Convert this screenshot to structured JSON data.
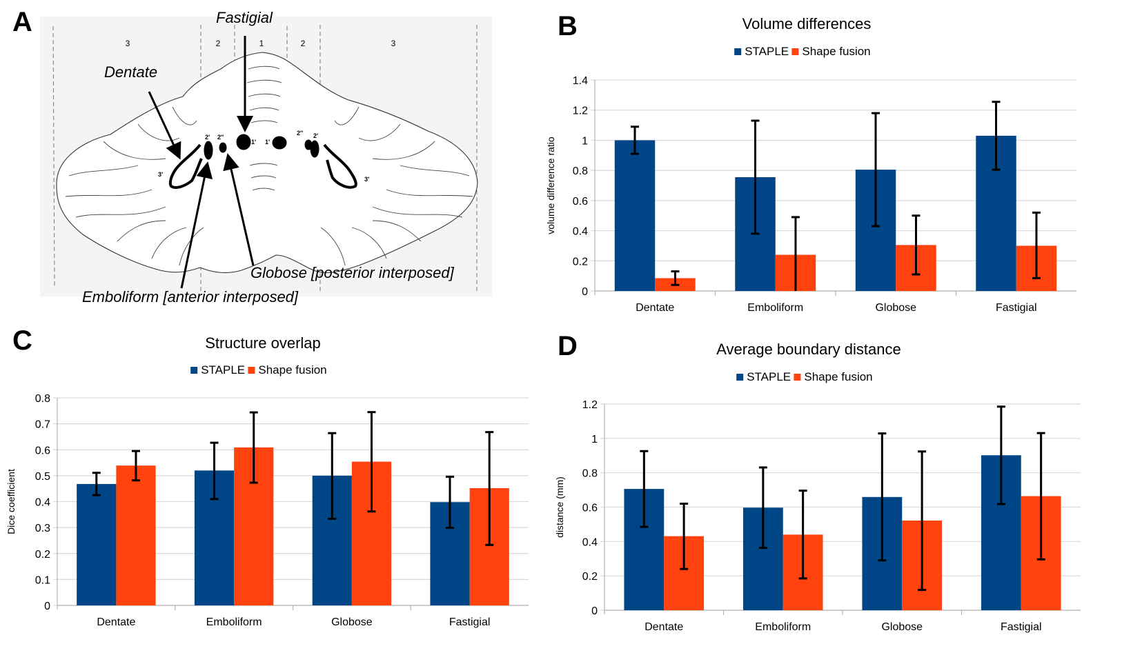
{
  "figure": {
    "panel_letters": [
      "A",
      "B",
      "C",
      "D"
    ]
  },
  "panel_a": {
    "zone_labels": [
      "3",
      "2",
      "1",
      "2",
      "3"
    ],
    "nucleus_marks": [
      "2'",
      "2''",
      "1'",
      "1'",
      "2''",
      "2'",
      "3'",
      "3'"
    ],
    "annotations": {
      "fastigial": "Fastigial",
      "dentate": "Dentate",
      "globose": "Globose [posterior interposed]",
      "emboliform": "Emboliform [anterior interposed]"
    }
  },
  "colors": {
    "staple": "#004586",
    "shape_fusion": "#ff420e",
    "grid": "#d9d9d9",
    "error_bar": "#000000"
  },
  "chart_data": [
    {
      "panel": "B",
      "type": "bar",
      "title": "Volume differences",
      "xlabel": "",
      "ylabel": "volume difference ratio",
      "ylim": [
        0,
        1.4
      ],
      "yticks": [
        0,
        0.2,
        0.4,
        0.6,
        0.8,
        1,
        1.2,
        1.4
      ],
      "ytick_labels": [
        "0",
        "0.2",
        "0.4",
        "0.6",
        "0.8",
        "1",
        "1.2",
        "1.4"
      ],
      "grid": true,
      "legend": "top-center",
      "categories": [
        "Dentate",
        "Emboliform",
        "Globose",
        "Fastigial"
      ],
      "series": [
        {
          "name": "STAPLE",
          "values": [
            1.0,
            0.755,
            0.805,
            1.03
          ],
          "error_low": [
            0.91,
            0.38,
            0.43,
            0.805
          ],
          "error_high": [
            1.09,
            1.13,
            1.18,
            1.255
          ]
        },
        {
          "name": "Shape fusion",
          "values": [
            0.085,
            0.24,
            0.305,
            0.3
          ],
          "error_low": [
            0.04,
            0.0,
            0.11,
            0.085
          ],
          "error_high": [
            0.13,
            0.49,
            0.5,
            0.52
          ]
        }
      ]
    },
    {
      "panel": "C",
      "type": "bar",
      "title": "Structure overlap",
      "xlabel": "",
      "ylabel": "Dice coefficient",
      "ylim": [
        0,
        0.8
      ],
      "yticks": [
        0,
        0.1,
        0.2,
        0.3,
        0.4,
        0.5,
        0.6,
        0.7,
        0.8
      ],
      "ytick_labels": [
        "0",
        "0.1",
        "0.2",
        "0.3",
        "0.4",
        "0.5",
        "0.6",
        "0.7",
        "0.8"
      ],
      "grid": true,
      "legend": "top-center",
      "categories": [
        "Dentate",
        "Emboliform",
        "Globose",
        "Fastigial"
      ],
      "series": [
        {
          "name": "STAPLE",
          "values": [
            0.468,
            0.52,
            0.5,
            0.398
          ],
          "error_low": [
            0.425,
            0.41,
            0.334,
            0.299
          ],
          "error_high": [
            0.511,
            0.627,
            0.664,
            0.496
          ]
        },
        {
          "name": "Shape fusion",
          "values": [
            0.539,
            0.609,
            0.554,
            0.452
          ],
          "error_low": [
            0.482,
            0.473,
            0.362,
            0.233
          ],
          "error_high": [
            0.595,
            0.744,
            0.745,
            0.668
          ]
        }
      ]
    },
    {
      "panel": "D",
      "type": "bar",
      "title": "Average boundary distance",
      "xlabel": "",
      "ylabel": "distance (mm)",
      "ylim": [
        0,
        1.2
      ],
      "yticks": [
        0,
        0.2,
        0.4,
        0.6,
        0.8,
        1,
        1.2
      ],
      "ytick_labels": [
        "0",
        "0.2",
        "0.4",
        "0.6",
        "0.8",
        "1",
        "1.2"
      ],
      "grid": true,
      "legend": "top-center",
      "categories": [
        "Dentate",
        "Emboliform",
        "Globose",
        "Fastigial"
      ],
      "series": [
        {
          "name": "STAPLE",
          "values": [
            0.706,
            0.597,
            0.659,
            0.902
          ],
          "error_low": [
            0.485,
            0.363,
            0.29,
            0.618
          ],
          "error_high": [
            0.926,
            0.831,
            1.029,
            1.185
          ]
        },
        {
          "name": "Shape fusion",
          "values": [
            0.431,
            0.44,
            0.522,
            0.664
          ],
          "error_low": [
            0.24,
            0.185,
            0.118,
            0.296
          ],
          "error_high": [
            0.62,
            0.696,
            0.924,
            1.031
          ]
        }
      ]
    }
  ]
}
